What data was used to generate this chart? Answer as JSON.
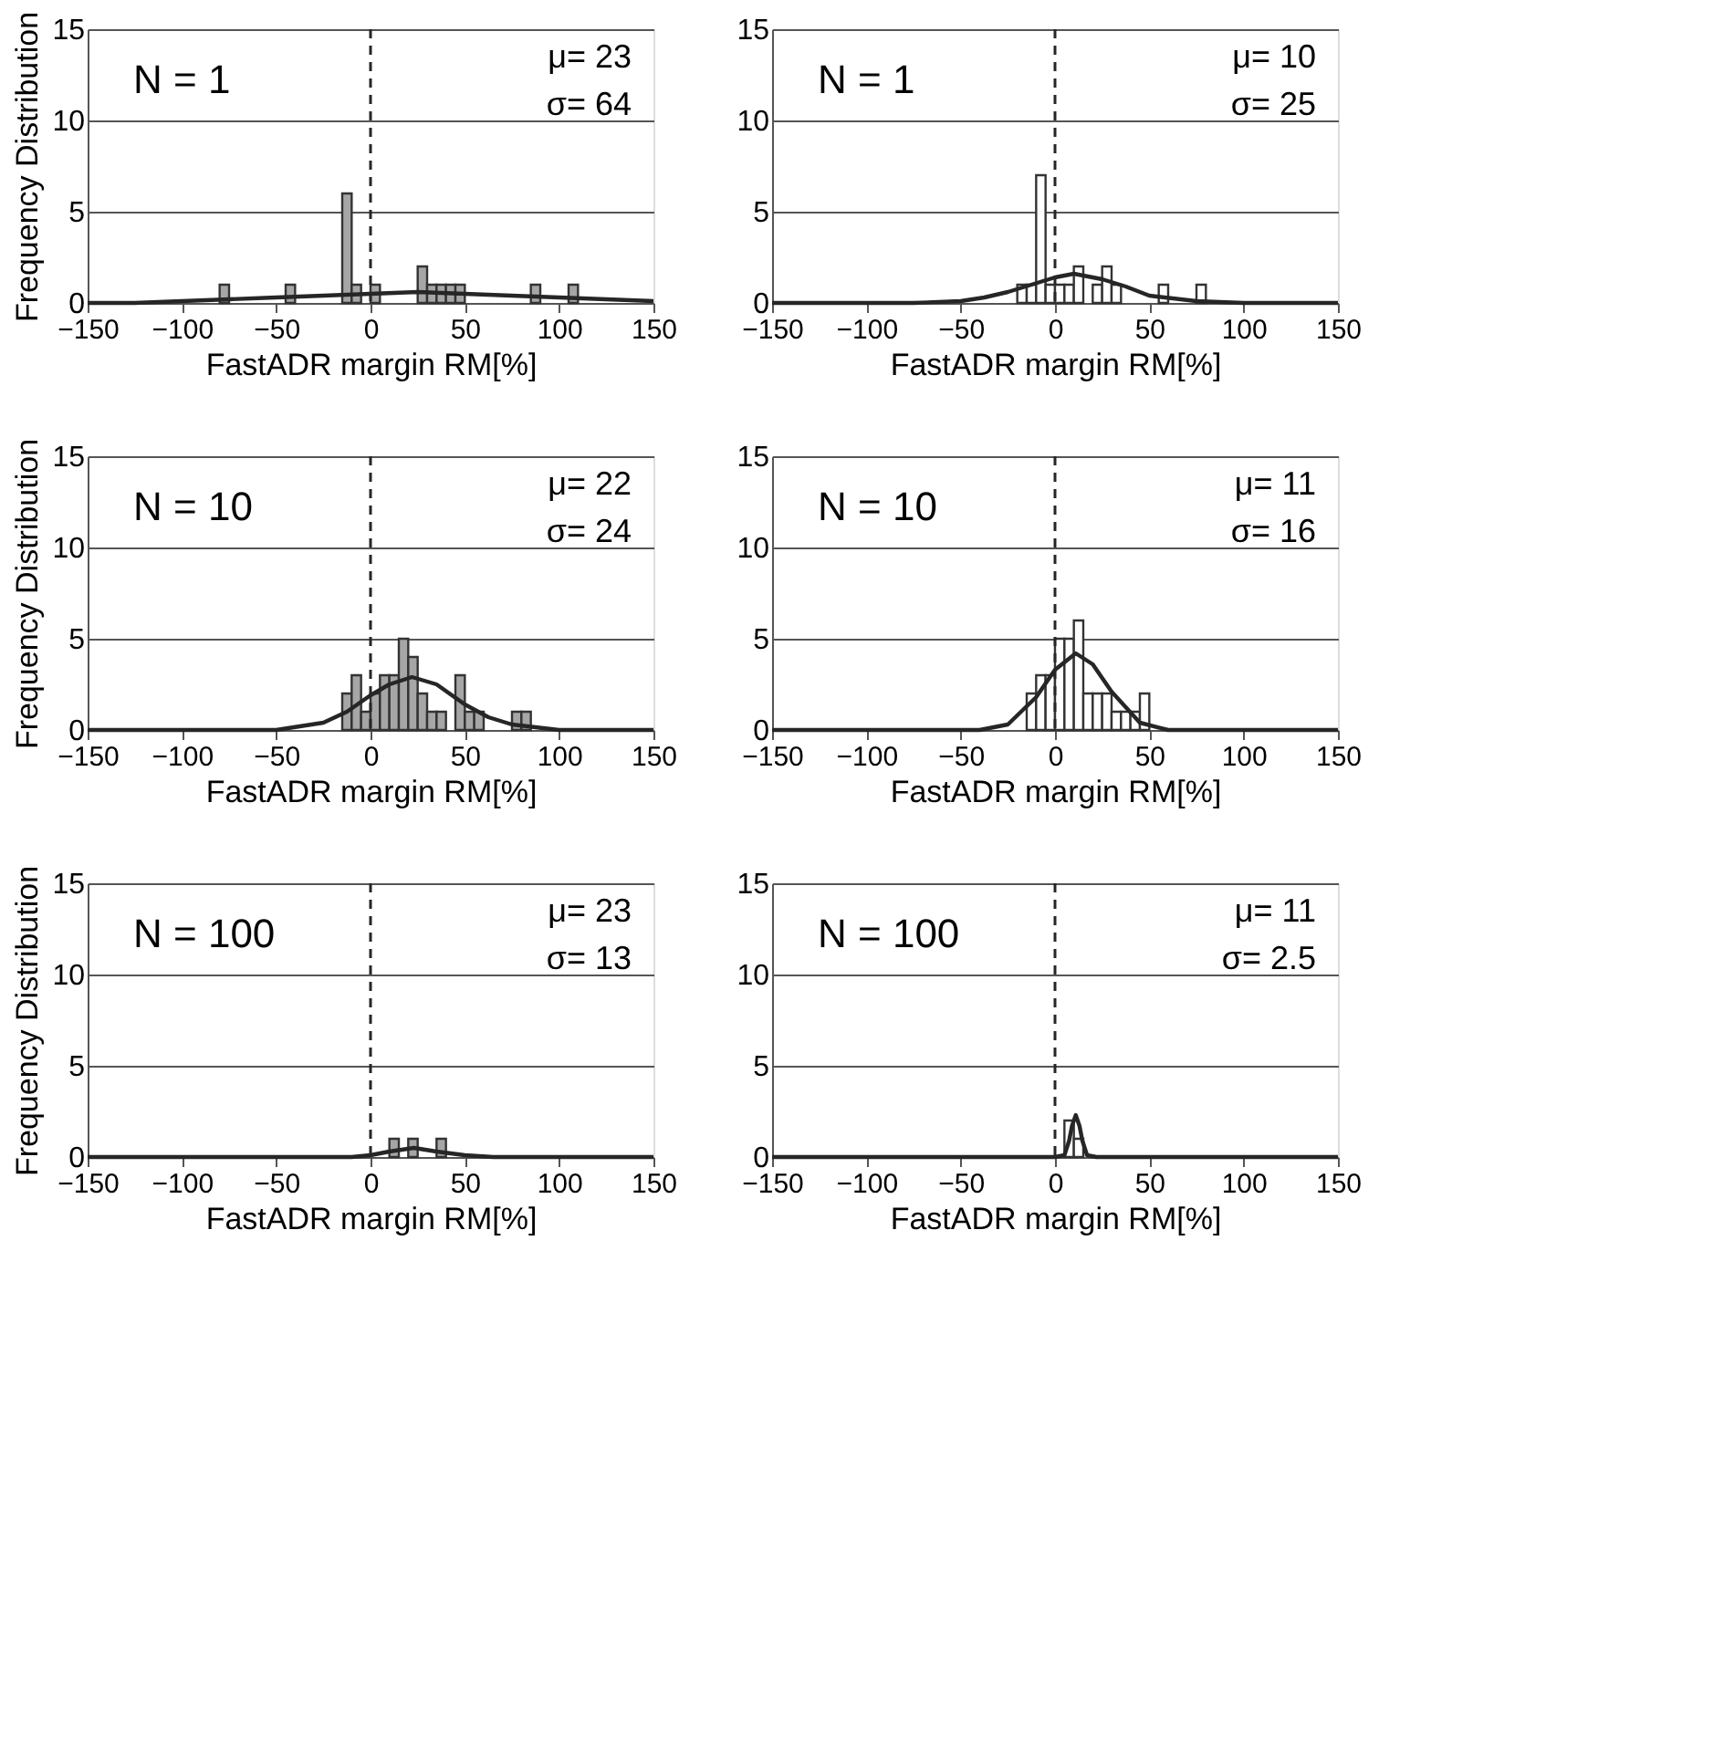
{
  "chart_data": [
    {
      "type": "histogram",
      "xlabel": "FastADR margin RM[%]",
      "ylabel": "Frequency Distribution",
      "annotations": [
        "N = 1",
        "μ= 23",
        "σ= 64"
      ],
      "bins": [
        -80,
        -75,
        -70,
        -65,
        -60,
        -55,
        -50,
        -45,
        -40,
        -35,
        -30,
        -25,
        -20,
        -15,
        -10,
        -5,
        0,
        5,
        10,
        15,
        20,
        25,
        30,
        35,
        40,
        45,
        50,
        55,
        60,
        65,
        70,
        75,
        80,
        85,
        90,
        95,
        100,
        105,
        110
      ],
      "values": [
        1,
        0,
        0,
        0,
        0,
        0,
        0,
        1,
        0,
        0,
        0,
        0,
        0,
        6,
        1,
        0,
        1,
        0,
        0,
        0,
        0,
        2,
        1,
        1,
        1,
        1,
        0,
        0,
        0,
        0,
        0,
        0,
        0,
        1,
        0,
        0,
        0,
        1
      ],
      "color": "#a6a6a6",
      "series": [
        {
          "type": "line",
          "color": "#262626",
          "x": [
            -150,
            -125,
            -100,
            -75,
            -50,
            0,
            25,
            50,
            75,
            100,
            125,
            150
          ],
          "values": [
            0,
            0,
            0.1,
            0.2,
            0.3,
            0.5,
            0.6,
            0.5,
            0.4,
            0.3,
            0.2,
            0.1
          ]
        }
      ],
      "xlim": [
        -150,
        150
      ],
      "xticks": [
        -150,
        -100,
        -50,
        0,
        50,
        100,
        150
      ],
      "ylim": [
        0,
        15
      ],
      "yticks": [
        0,
        5,
        10,
        15
      ],
      "grid": "y",
      "ref_lines": [
        {
          "axis": "x",
          "value": 0,
          "line_style": "dashed",
          "color": "#262626"
        }
      ]
    },
    {
      "type": "histogram",
      "xlabel": "FastADR margin RM[%]",
      "annotations": [
        "N = 1",
        "μ= 10",
        "σ= 25"
      ],
      "bins": [
        -20,
        -15,
        -10,
        -5,
        0,
        5,
        10,
        15,
        20,
        25,
        30,
        35,
        40,
        45,
        50,
        55,
        60,
        65,
        70,
        75,
        80
      ],
      "values": [
        1,
        1,
        7,
        1,
        1,
        1,
        2,
        0,
        1,
        2,
        1,
        0,
        0,
        0,
        0,
        1,
        0,
        0,
        0,
        1
      ],
      "color": "#ffffff",
      "series": [
        {
          "type": "line",
          "color": "#262626",
          "x": [
            -150,
            -100,
            -75,
            -50,
            -37.5,
            -25,
            0,
            10,
            25,
            37.5,
            50,
            75,
            100,
            150
          ],
          "values": [
            0,
            0,
            0,
            0.1,
            0.3,
            0.6,
            1.4,
            1.6,
            1.3,
            0.9,
            0.4,
            0.1,
            0,
            0
          ]
        }
      ],
      "xlim": [
        -150,
        150
      ],
      "xticks": [
        -150,
        -100,
        -50,
        0,
        50,
        100,
        150
      ],
      "ylim": [
        0,
        15
      ],
      "yticks": [
        0,
        5,
        10,
        15
      ],
      "grid": "y",
      "ref_lines": [
        {
          "axis": "x",
          "value": 0,
          "line_style": "dashed",
          "color": "#262626"
        }
      ]
    },
    {
      "type": "histogram",
      "xlabel": "FastADR margin RM[%]",
      "ylabel": "Frequency Distribution",
      "annotations": [
        "N = 10",
        "μ= 22",
        "σ= 24"
      ],
      "bins": [
        -15,
        -10,
        -5,
        0,
        5,
        10,
        15,
        20,
        25,
        30,
        35,
        40,
        45,
        50,
        55,
        60,
        65,
        70,
        75,
        80,
        85
      ],
      "values": [
        2,
        3,
        1,
        2,
        3,
        3,
        5,
        4,
        2,
        1,
        1,
        0,
        3,
        1,
        1,
        0,
        0,
        0,
        1,
        1
      ],
      "color": "#a6a6a6",
      "series": [
        {
          "type": "line",
          "color": "#262626",
          "x": [
            -150,
            -50,
            -25,
            -12.5,
            0,
            10,
            22,
            35,
            50,
            62.5,
            75,
            100,
            150
          ],
          "values": [
            0,
            0,
            0.4,
            1,
            1.9,
            2.5,
            2.9,
            2.5,
            1.4,
            0.7,
            0.3,
            0,
            0
          ]
        }
      ],
      "xlim": [
        -150,
        150
      ],
      "xticks": [
        -150,
        -100,
        -50,
        0,
        50,
        100,
        150
      ],
      "ylim": [
        0,
        15
      ],
      "yticks": [
        0,
        5,
        10,
        15
      ],
      "grid": "y",
      "ref_lines": [
        {
          "axis": "x",
          "value": 0,
          "line_style": "dashed",
          "color": "#262626"
        }
      ]
    },
    {
      "type": "histogram",
      "xlabel": "FastADR margin RM[%]",
      "annotations": [
        "N = 10",
        "μ= 11",
        "σ= 16"
      ],
      "bins": [
        -15,
        -10,
        -5,
        0,
        5,
        10,
        15,
        20,
        25,
        30,
        35,
        40,
        45,
        50
      ],
      "values": [
        2,
        3,
        3,
        5,
        5,
        6,
        2,
        2,
        2,
        1,
        1,
        1,
        2
      ],
      "color": "#ffffff",
      "series": [
        {
          "type": "line",
          "color": "#262626",
          "x": [
            -150,
            -50,
            -40,
            -25,
            -10,
            0,
            11,
            20,
            30,
            45,
            60,
            75,
            150
          ],
          "values": [
            0,
            0,
            0,
            0.3,
            1.8,
            3.3,
            4.2,
            3.6,
            2.1,
            0.4,
            0,
            0,
            0
          ]
        }
      ],
      "xlim": [
        -150,
        150
      ],
      "xticks": [
        -150,
        -100,
        -50,
        0,
        50,
        100,
        150
      ],
      "ylim": [
        0,
        15
      ],
      "yticks": [
        0,
        5,
        10,
        15
      ],
      "grid": "y",
      "ref_lines": [
        {
          "axis": "x",
          "value": 0,
          "line_style": "dashed",
          "color": "#262626"
        }
      ]
    },
    {
      "type": "histogram",
      "xlabel": "FastADR margin RM[%]",
      "ylabel": "Frequency Distribution",
      "annotations": [
        "N = 100",
        "μ= 23",
        "σ= 13"
      ],
      "bins": [
        10,
        15,
        20,
        25,
        30,
        35,
        40
      ],
      "values": [
        1,
        0,
        1,
        0,
        0,
        1
      ],
      "color": "#a6a6a6",
      "series": [
        {
          "type": "line",
          "color": "#262626",
          "x": [
            -150,
            -20,
            -10,
            0,
            10,
            23,
            35,
            50,
            65,
            150
          ],
          "values": [
            0,
            0,
            0,
            0.1,
            0.3,
            0.5,
            0.3,
            0.1,
            0,
            0
          ]
        }
      ],
      "xlim": [
        -150,
        150
      ],
      "xticks": [
        -150,
        -100,
        -50,
        0,
        50,
        100,
        150
      ],
      "ylim": [
        0,
        15
      ],
      "yticks": [
        0,
        5,
        10,
        15
      ],
      "grid": "y",
      "ref_lines": [
        {
          "axis": "x",
          "value": 0,
          "line_style": "dashed",
          "color": "#262626"
        }
      ]
    },
    {
      "type": "histogram",
      "xlabel": "FastADR margin RM[%]",
      "annotations": [
        "N = 100",
        "μ= 11",
        "σ= 2.5"
      ],
      "bins": [
        5,
        10,
        15
      ],
      "values": [
        2,
        1
      ],
      "color": "#ffffff",
      "series": [
        {
          "type": "line",
          "color": "#262626",
          "x": [
            -150,
            0,
            5,
            7.5,
            9,
            11,
            13,
            14.5,
            17,
            22,
            150
          ],
          "values": [
            0,
            0,
            0.1,
            0.9,
            1.7,
            2.3,
            1.7,
            0.9,
            0.1,
            0,
            0
          ]
        }
      ],
      "xlim": [
        -150,
        150
      ],
      "xticks": [
        -150,
        -100,
        -50,
        0,
        50,
        100,
        150
      ],
      "ylim": [
        0,
        15
      ],
      "yticks": [
        0,
        5,
        10,
        15
      ],
      "grid": "y",
      "ref_lines": [
        {
          "axis": "x",
          "value": 0,
          "line_style": "dashed",
          "color": "#262626"
        }
      ]
    }
  ]
}
